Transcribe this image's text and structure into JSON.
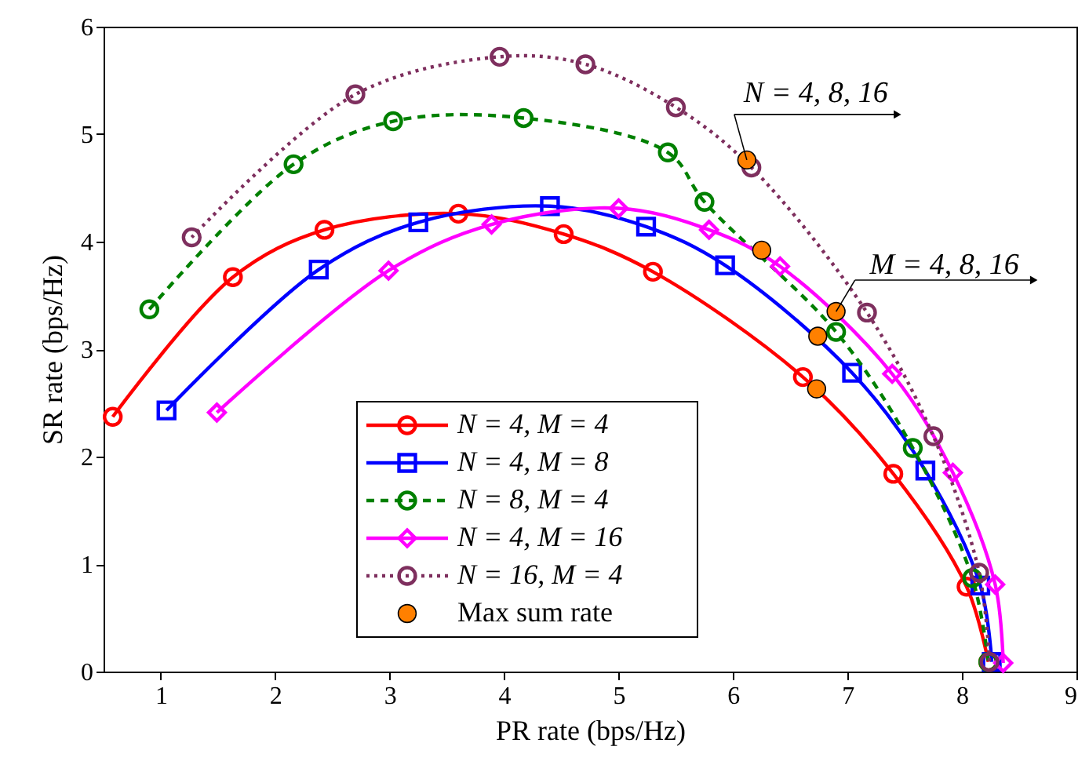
{
  "chart_data": {
    "type": "line",
    "xlabel": "PR rate (bps/Hz)",
    "ylabel": "SR rate (bps/Hz)",
    "xlim": [
      0.5,
      9
    ],
    "ylim": [
      0,
      6
    ],
    "xticks": [
      1,
      2,
      3,
      4,
      5,
      6,
      7,
      8,
      9
    ],
    "yticks": [
      0,
      1,
      2,
      3,
      4,
      5,
      6
    ],
    "grid": false,
    "legend": "bottom",
    "annotations": [
      {
        "text": "N = 4, 8, 16",
        "x": 6.12,
        "y": 4.76
      },
      {
        "text": "M = 4, 8, 16",
        "x": 6.9,
        "y": 3.35
      }
    ],
    "series": [
      {
        "name": "N = 4, M = 4",
        "color": "#ff0000",
        "marker": "circle",
        "line_style": "solid",
        "x": [
          0.58,
          1.63,
          2.43,
          3.6,
          4.52,
          5.3,
          6.61,
          7.4,
          8.04,
          8.23
        ],
        "values": [
          2.37,
          3.67,
          4.11,
          4.26,
          4.07,
          3.72,
          2.74,
          1.84,
          0.79,
          0.09
        ]
      },
      {
        "name": "N = 4, M = 8",
        "color": "#0000ff",
        "marker": "square",
        "line_style": "solid",
        "x": [
          1.05,
          2.38,
          3.25,
          4.4,
          5.24,
          5.93,
          7.04,
          7.68,
          8.16,
          8.26
        ],
        "values": [
          2.43,
          3.74,
          4.18,
          4.33,
          4.14,
          3.78,
          2.78,
          1.87,
          0.8,
          0.09
        ]
      },
      {
        "name": "N = 8, M = 4",
        "color": "#008000",
        "marker": "circle",
        "line_style": "dashed",
        "x": [
          0.9,
          2.16,
          3.03,
          4.17,
          5.43,
          5.75,
          6.9,
          7.57,
          8.09,
          8.23
        ],
        "values": [
          3.37,
          4.72,
          5.12,
          5.15,
          4.83,
          4.37,
          3.16,
          2.08,
          0.87,
          0.09
        ]
      },
      {
        "name": "N = 4, M = 16",
        "color": "#ff00ff",
        "marker": "diamond",
        "line_style": "solid",
        "x": [
          1.49,
          2.99,
          3.89,
          5.0,
          5.79,
          6.41,
          7.39,
          7.92,
          8.29,
          8.36
        ],
        "values": [
          2.41,
          3.73,
          4.16,
          4.31,
          4.11,
          3.77,
          2.77,
          1.85,
          0.81,
          0.08
        ]
      },
      {
        "name": "N = 16, M = 4",
        "color": "#7e2f5e",
        "marker": "circle",
        "line_style": "dotted",
        "x": [
          1.27,
          2.7,
          3.96,
          4.71,
          5.5,
          6.16,
          7.17,
          7.75,
          8.15,
          8.24
        ],
        "values": [
          4.04,
          5.37,
          5.72,
          5.65,
          5.25,
          4.69,
          3.34,
          2.19,
          0.92,
          0.09
        ]
      },
      {
        "name": "Max sum rate",
        "type": "scatter",
        "color": "#ff8000",
        "marker": "circle",
        "x": [
          6.12,
          6.25,
          6.74,
          6.9,
          6.73
        ],
        "values": [
          4.76,
          3.92,
          3.12,
          3.35,
          2.63
        ]
      }
    ]
  }
}
